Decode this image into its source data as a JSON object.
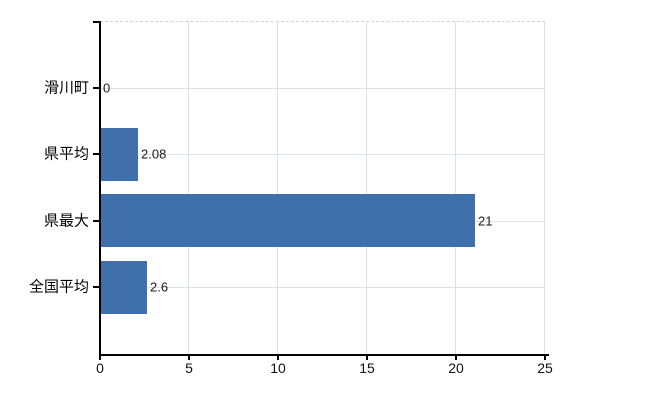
{
  "chart_data": {
    "type": "bar",
    "orientation": "horizontal",
    "categories": [
      "滑川町",
      "県平均",
      "県最大",
      "全国平均"
    ],
    "values": [
      0,
      2.08,
      21,
      2.6
    ],
    "value_labels": [
      "0",
      "2.08",
      "21",
      "2.6"
    ],
    "xlim": [
      0,
      25
    ],
    "xticks": [
      0,
      5,
      10,
      15,
      20,
      25
    ],
    "xtick_labels": [
      "0",
      "5",
      "10",
      "15",
      "20",
      "25"
    ],
    "grid": "on",
    "legend": "none",
    "colors": {
      "bar": "#3f70ab",
      "axis": "#000000",
      "gridline": "#dce3dc",
      "top_border": "#cfd3cf",
      "category_text": "#000000",
      "value_text": "#1a1a1a",
      "tick_text": "#111111",
      "background": "#ffffff"
    }
  }
}
